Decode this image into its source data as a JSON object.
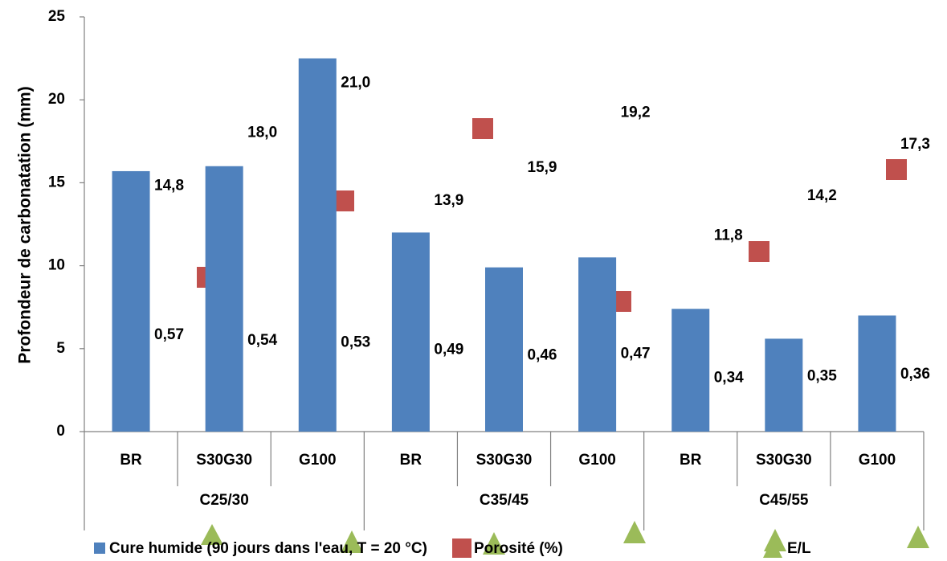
{
  "chart_data": {
    "type": "bar",
    "y_label": "Profondeur de carbonatation (mm)",
    "categories": [
      "BR",
      "S30G30",
      "G100",
      "BR",
      "S30G30",
      "G100",
      "BR",
      "S30G30",
      "G100"
    ],
    "groups": [
      "C25/30",
      "C35/45",
      "C45/55"
    ],
    "series": [
      {
        "name": "Cure humide (90 jours dans l'eau, T = 20 °C)",
        "color": "#4f81bd",
        "values": [
          15.7,
          16.0,
          22.5,
          12.0,
          9.9,
          10.5,
          7.4,
          5.6,
          7.0
        ]
      },
      {
        "name": "Porosité (%)",
        "color": "#c0504d",
        "values": [
          14.8,
          18.0,
          21.0,
          13.9,
          15.9,
          19.2,
          11.8,
          14.2,
          17.3
        ],
        "value_labels": [
          "14,8",
          "18,0",
          "21,0",
          "13,9",
          "15,9",
          "19,2",
          "11,8",
          "14,2",
          "17,3"
        ]
      },
      {
        "name": "E/L",
        "color": "#9bbb59",
        "values": [
          0.57,
          0.54,
          0.53,
          0.49,
          0.46,
          0.47,
          0.34,
          0.35,
          0.36
        ],
        "value_labels": [
          "0,57",
          "0,54",
          "0,53",
          "0,49",
          "0,46",
          "0,47",
          "0,34",
          "0,35",
          "0,36"
        ]
      }
    ],
    "ylim": [
      0,
      25
    ],
    "yticks": [
      0,
      5,
      10,
      15,
      20,
      25
    ]
  }
}
